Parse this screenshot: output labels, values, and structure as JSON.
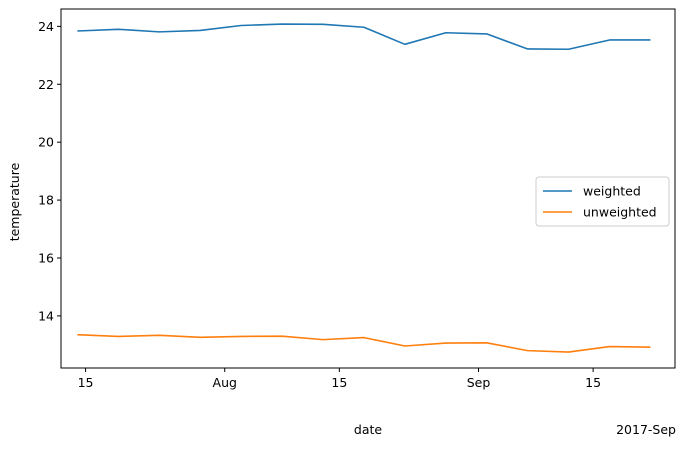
{
  "chart_data": {
    "type": "line",
    "xlabel": "date",
    "ylabel": "temperature",
    "x_offset_label": "2017-Sep",
    "x_range": [
      "2017-07-12",
      "2017-09-25"
    ],
    "ylim": [
      12.2,
      24.6
    ],
    "y_ticks": [
      14,
      16,
      18,
      20,
      22,
      24
    ],
    "x_ticks": [
      {
        "date": "2017-07-15",
        "label": "15"
      },
      {
        "date": "2017-08-01",
        "label": "Aug"
      },
      {
        "date": "2017-08-15",
        "label": "15"
      },
      {
        "date": "2017-09-01",
        "label": "Sep"
      },
      {
        "date": "2017-09-15",
        "label": "15"
      }
    ],
    "grid": false,
    "legend_position": "center-right",
    "x": [
      "2017-07-14",
      "2017-07-19",
      "2017-07-24",
      "2017-07-29",
      "2017-08-03",
      "2017-08-08",
      "2017-08-13",
      "2017-08-18",
      "2017-08-23",
      "2017-08-28",
      "2017-09-02",
      "2017-09-07",
      "2017-09-12",
      "2017-09-17",
      "2017-09-22"
    ],
    "series": [
      {
        "name": "weighted",
        "color": "#1f77b4",
        "values": [
          23.84,
          23.9,
          23.81,
          23.86,
          24.03,
          24.08,
          24.07,
          23.97,
          23.38,
          23.78,
          23.74,
          23.22,
          23.21,
          23.53,
          23.53
        ]
      },
      {
        "name": "unweighted",
        "color": "#ff7f0e",
        "values": [
          13.35,
          13.29,
          13.33,
          13.26,
          13.29,
          13.3,
          13.18,
          13.25,
          12.96,
          13.06,
          13.07,
          12.8,
          12.75,
          12.94,
          12.92
        ]
      }
    ]
  }
}
